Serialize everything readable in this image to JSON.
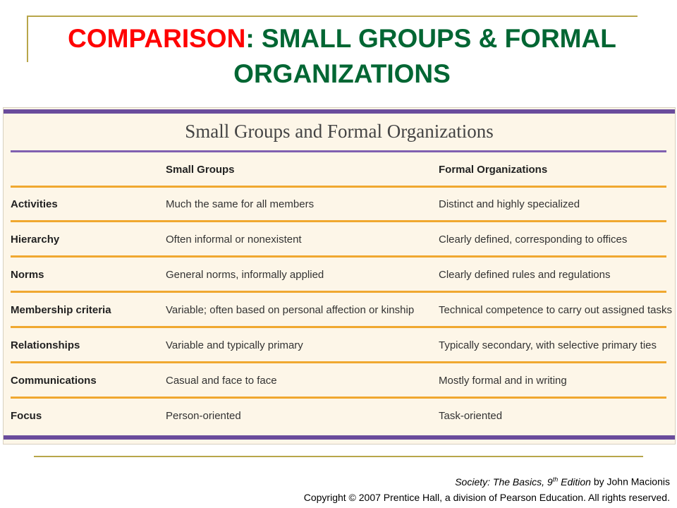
{
  "slide": {
    "title_accent": "COMPARISON",
    "title_rest": ": SMALL GROUPS & FORMAL ORGANIZATIONS"
  },
  "table": {
    "title": "Small Groups and Formal Organizations",
    "headers": [
      "",
      "Small Groups",
      "Formal Organizations"
    ],
    "rows": [
      [
        "Activities",
        "Much the same for all members",
        "Distinct and highly specialized"
      ],
      [
        "Hierarchy",
        "Often informal or nonexistent",
        "Clearly defined, corresponding to offices"
      ],
      [
        "Norms",
        "General norms, informally applied",
        "Clearly defined rules and regulations"
      ],
      [
        "Membership criteria",
        "Variable; often based on personal affection or kinship",
        "Technical competence to carry out assigned tasks"
      ],
      [
        "Relationships",
        "Variable and typically primary",
        "Typically secondary, with selective primary ties"
      ],
      [
        "Communications",
        "Casual and face to face",
        "Mostly formal and in writing"
      ],
      [
        "Focus",
        "Person-oriented",
        "Task-oriented"
      ]
    ]
  },
  "footer": {
    "book_title": "Society: The Basics, 9",
    "edition_sup": "th",
    "edition_word": " Edition",
    "author": " by John Macionis",
    "copyright": "Copyright © 2007 Prentice Hall, a division of Pearson Education. All rights reserved."
  },
  "colors": {
    "title_green": "#006633",
    "title_red": "#ff0000",
    "purple_bar": "#6a4c9c",
    "orange_rule": "#f0a830"
  }
}
